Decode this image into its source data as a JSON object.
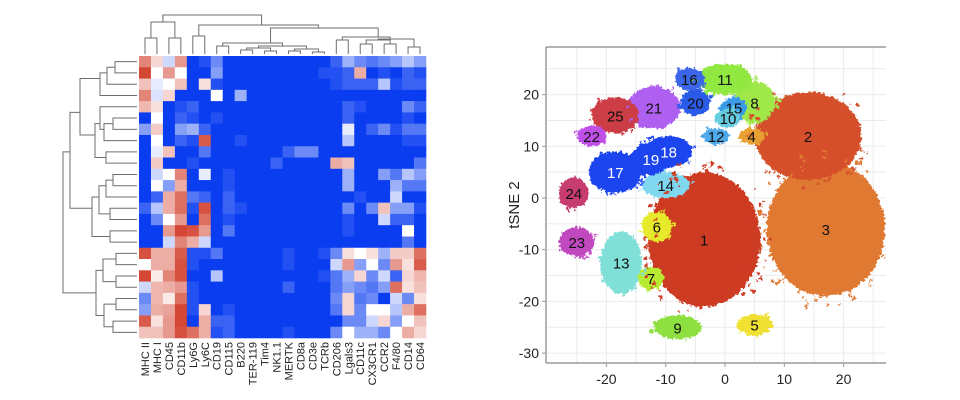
{
  "chart_data": [
    {
      "type": "heatmap",
      "title": "",
      "columns": [
        "MHC II",
        "MHC I",
        "CD45",
        "CD11b",
        "Ly6G",
        "Ly6C",
        "CD19",
        "CD115",
        "B220",
        "TER-119",
        "Tim4",
        "NK1.1",
        "MERTK",
        "CD8a",
        "CD3e",
        "TCRb",
        "CD206",
        "Lgals3",
        "CD11c",
        "CX3CR1",
        "CCR2",
        "F4/80",
        "CD14",
        "CD64"
      ],
      "row_count": 25,
      "value_range": [
        -1,
        1
      ],
      "colors": {
        "low": "#0a3cf0",
        "mid": "#ffffff",
        "high": "#d0321e"
      },
      "dendrogram_rows": true,
      "dendrogram_columns": true,
      "values": [
        [
          0.6,
          0.2,
          -0.2,
          0.5,
          -1,
          -0.9,
          -0.6,
          -1,
          -1,
          -1,
          -1,
          -1,
          -1,
          -1,
          -1,
          -1,
          -0.8,
          -0.4,
          -0.6,
          -0.7,
          -0.6,
          -0.5,
          -0.3,
          -0.5
        ],
        [
          0.9,
          0,
          0.5,
          0,
          -1,
          -1,
          -0.5,
          -1,
          -1,
          -1,
          -1,
          -1,
          -1,
          -1,
          -1,
          -0.9,
          -0.9,
          -0.8,
          0.4,
          -1,
          -0.9,
          -1,
          -0.8,
          -0.9
        ],
        [
          0.3,
          -0.1,
          0,
          0.3,
          -1,
          0.15,
          -0.9,
          -1,
          -1,
          -1,
          -1,
          -1,
          -1,
          -1,
          -1,
          -1,
          -0.9,
          -0.8,
          -0.8,
          -0.8,
          -0.3,
          -0.9,
          -0.8,
          -0.8
        ],
        [
          0.6,
          -0.15,
          0.2,
          -1,
          -1,
          -1,
          0,
          -1,
          -0.4,
          -1,
          -1,
          -1,
          -1,
          -1,
          -1,
          -1,
          -1,
          -1,
          -1,
          -1,
          -1,
          -1,
          -1,
          -1
        ],
        [
          0.35,
          0.15,
          -1,
          -0.9,
          -0.8,
          -1,
          -1,
          -1,
          -1,
          -1,
          -1,
          -1,
          -1,
          -1,
          -1,
          -1,
          -1,
          -0.8,
          -0.9,
          -1,
          -1,
          -1,
          -0.6,
          -0.8
        ],
        [
          -1,
          0,
          -1,
          -0.8,
          -0.9,
          -1,
          -0.9,
          -1,
          -1,
          -1,
          -1,
          -1,
          -1,
          -1,
          -1,
          -1,
          -1,
          -0.8,
          -1,
          -1,
          -1,
          -1,
          -0.9,
          -1
        ],
        [
          -0.5,
          0.25,
          -1,
          -0.5,
          -0.4,
          -0.8,
          -1,
          -1,
          -1,
          -1,
          -1,
          -1,
          -1,
          -1,
          -1,
          -1,
          -1,
          -0.1,
          -1,
          -0.8,
          -0.6,
          -0.9,
          -0.7,
          -0.7
        ],
        [
          -1,
          0,
          -1,
          -0.8,
          -0.9,
          0.8,
          -1,
          -1,
          -0.9,
          -1,
          -1,
          -1,
          -1,
          -1,
          -1,
          -1,
          -1,
          -0.3,
          -1,
          -1,
          -1,
          -1,
          -0.9,
          -0.9
        ],
        [
          -1,
          -0.1,
          0.3,
          -1,
          -1,
          -0.7,
          -1,
          -1,
          -1,
          -1,
          -1,
          -1,
          -0.8,
          -0.6,
          -0.6,
          -1,
          -1,
          -1,
          -1,
          -1,
          -1,
          -1,
          -1,
          -1
        ],
        [
          -1,
          0.25,
          -1,
          -1,
          -0.9,
          -1,
          -1,
          -1,
          -1,
          -1,
          -1,
          -0.8,
          -1,
          -1,
          -1,
          -1,
          0.4,
          0.3,
          -1,
          -1,
          -1,
          -1,
          -1,
          -0.7
        ],
        [
          -1,
          -0.2,
          0,
          0.6,
          -1,
          -0.1,
          -1,
          -0.9,
          -1,
          -1,
          -1,
          -1,
          -1,
          -1,
          -1,
          -1,
          -1,
          -0.4,
          -1,
          -1,
          -0.5,
          -0.7,
          -0.3,
          -0.5
        ],
        [
          -1,
          0,
          -0.5,
          0.4,
          -1,
          -1,
          -1,
          -0.9,
          -1,
          -1,
          -1,
          -1,
          -1,
          -1,
          -1,
          -1,
          -1,
          -0.4,
          -1,
          -1,
          -1,
          -0.4,
          -0.7,
          -0.7
        ],
        [
          -1,
          -0.8,
          0.4,
          0.7,
          -0.7,
          -0.8,
          -1,
          -0.8,
          -1,
          -1,
          -1,
          -1,
          -1,
          -1,
          -1,
          -1,
          -1,
          -1,
          -0.9,
          -1,
          -1,
          -0.2,
          -1,
          -1
        ],
        [
          -0.8,
          -0.3,
          0.4,
          0.7,
          -0.9,
          0.85,
          -1,
          -0.8,
          -0.9,
          -1,
          -1,
          -1,
          -1,
          -1,
          -1,
          -1,
          -1,
          -0.6,
          -1,
          -0.6,
          0.3,
          -0.5,
          -0.5,
          -0.9
        ],
        [
          -1,
          -0.6,
          0,
          0.5,
          -1,
          0.7,
          -1,
          -0.9,
          -1,
          -1,
          -1,
          -1,
          -1,
          -1,
          -1,
          -1,
          -1,
          -0.9,
          -1,
          -1,
          -0.2,
          -0.8,
          -0.8,
          -1
        ],
        [
          -1,
          -1,
          0.5,
          0.9,
          0.85,
          0.5,
          -1,
          -0.7,
          -1,
          -1,
          -1,
          -1,
          -1,
          -1,
          -1,
          -1,
          -1,
          -0.9,
          -1,
          -1,
          -1,
          -1,
          0,
          -1
        ],
        [
          -1,
          -1,
          -0.2,
          0.6,
          0.4,
          -0.2,
          -1,
          -1,
          -1,
          -1,
          -1,
          -1,
          -1,
          -1,
          -1,
          -1,
          -1,
          -1,
          -1,
          -1,
          -1,
          -1,
          -0.7,
          -1
        ],
        [
          0.85,
          0.4,
          0.4,
          0.8,
          -0.9,
          -0.9,
          -0.7,
          -1,
          -1,
          -1,
          -1,
          -1,
          -0.9,
          -1,
          -1,
          -0.9,
          -0.6,
          0.15,
          0,
          0.15,
          -0.4,
          0.25,
          0.25,
          0.7
        ],
        [
          0,
          0.4,
          0.4,
          0.85,
          -0.9,
          -1,
          -1,
          -1,
          -1,
          -1,
          -1,
          -1,
          -0.9,
          -1,
          -1,
          -1,
          -0.2,
          0.5,
          -0.5,
          0,
          -0.6,
          0.5,
          0.15,
          0.8
        ],
        [
          0.9,
          0.1,
          0.6,
          0.85,
          -1,
          -1,
          -0.3,
          -1,
          -1,
          -1,
          -1,
          -1,
          -1,
          -1,
          -1,
          -0.9,
          -0.7,
          -0.4,
          0.2,
          -0.6,
          -0.2,
          -0.8,
          0.2,
          0.35
        ],
        [
          -0.2,
          0.35,
          0.4,
          0.5,
          -0.9,
          -1,
          -1,
          -1,
          -1,
          -1,
          -1,
          -1,
          -0.8,
          -1,
          -1,
          -1,
          -0.7,
          -0.5,
          -0.6,
          -0.7,
          -0.5,
          0.7,
          0.15,
          0.3
        ],
        [
          -0.6,
          0.35,
          0.1,
          0.7,
          -0.9,
          -1,
          -1,
          -1,
          -1,
          -1,
          -1,
          -1,
          -1,
          -1,
          -1,
          -1,
          -0.6,
          0.2,
          -0.7,
          -0.6,
          -1,
          -0.2,
          -0.6,
          0.15
        ],
        [
          -0.5,
          0.4,
          0.45,
          0.9,
          -0.9,
          0.2,
          -1,
          -0.9,
          -1,
          -1,
          -1,
          -1,
          -1,
          -1,
          -1,
          -1,
          -0.7,
          0.2,
          -0.6,
          0,
          0,
          -0.3,
          0.4,
          0.7
        ],
        [
          0.8,
          0.15,
          0.5,
          0.9,
          -1,
          0.4,
          -0.8,
          -0.8,
          -1,
          -1,
          -1,
          -1,
          -1,
          -1,
          -1,
          -1,
          -1,
          -0.6,
          -0.6,
          -0.2,
          0.2,
          -0.5,
          0,
          0.3
        ],
        [
          0.3,
          0.3,
          0.5,
          0.85,
          0.7,
          0.4,
          -0.9,
          -0.8,
          -1,
          -1,
          -1,
          -1,
          -0.9,
          -1,
          -1,
          -1,
          -0.6,
          0,
          -0.4,
          -0.4,
          -0.6,
          0,
          0.4,
          0.2
        ]
      ]
    },
    {
      "type": "scatter",
      "title": "",
      "xlabel": "",
      "ylabel": "tSNE 2",
      "xlim": [
        -30,
        27
      ],
      "ylim": [
        -32,
        29
      ],
      "xticks": [
        "-20",
        "-10",
        "0",
        "10",
        "20"
      ],
      "xtick_values": [
        -20,
        -10,
        0,
        10,
        20
      ],
      "yticks": [
        "20",
        "10",
        "0",
        "-10",
        "-20",
        "-30"
      ],
      "ytick_values": [
        20,
        10,
        0,
        -10,
        -20,
        -30
      ],
      "grid": true,
      "clusters": [
        {
          "label": "1",
          "color": "#cc3a24",
          "cx": -3.5,
          "cy": -8,
          "rx": 9.5,
          "ry": 13
        },
        {
          "label": "2",
          "color": "#d4502a",
          "cx": 14,
          "cy": 12,
          "rx": 9,
          "ry": 8.5
        },
        {
          "label": "3",
          "color": "#e07a30",
          "cx": 17,
          "cy": -6,
          "rx": 10,
          "ry": 13
        },
        {
          "label": "4",
          "color": "#e8a030",
          "cx": 4.5,
          "cy": 12,
          "rx": 2.2,
          "ry": 1.5
        },
        {
          "label": "5",
          "color": "#f0e030",
          "cx": 5,
          "cy": -24.5,
          "rx": 3,
          "ry": 2
        },
        {
          "label": "6",
          "color": "#e6ea2a",
          "cx": -11.5,
          "cy": -5.5,
          "rx": 2.5,
          "ry": 3
        },
        {
          "label": "7",
          "color": "#b8ea30",
          "cx": -12.5,
          "cy": -15.5,
          "rx": 2.2,
          "ry": 2.2
        },
        {
          "label": "8",
          "color": "#a0e848",
          "cx": 5,
          "cy": 18.5,
          "rx": 3.5,
          "ry": 4
        },
        {
          "label": "9",
          "color": "#8ee040",
          "cx": -8,
          "cy": -25,
          "rx": 4,
          "ry": 2.3
        },
        {
          "label": "10",
          "color": "#66cce0",
          "cx": 0.5,
          "cy": 15.5,
          "rx": 2.2,
          "ry": 1.8
        },
        {
          "label": "11",
          "color": "#90e840",
          "cx": 0,
          "cy": 23,
          "rx": 4.5,
          "ry": 3
        },
        {
          "label": "12",
          "color": "#50a8e8",
          "cx": -1.5,
          "cy": 12,
          "rx": 2.2,
          "ry": 1.5
        },
        {
          "label": "13",
          "color": "#80e0d8",
          "cx": -17.5,
          "cy": -12.5,
          "rx": 3.5,
          "ry": 6
        },
        {
          "label": "14",
          "color": "#80d8f0",
          "cx": -10,
          "cy": 2.5,
          "rx": 4,
          "ry": 2.5
        },
        {
          "label": "15",
          "color": "#3a9ae8",
          "cx": 1.5,
          "cy": 17.5,
          "rx": 2.2,
          "ry": 2
        },
        {
          "label": "16",
          "color": "#3a66e8",
          "cx": -6,
          "cy": 23,
          "rx": 2.5,
          "ry": 2.2
        },
        {
          "label": "17",
          "color": "#1a44f0",
          "cx": -18.5,
          "cy": 5,
          "rx": 4.5,
          "ry": 4
        },
        {
          "label": "18",
          "color": "#1a44f0",
          "cx": -9.5,
          "cy": 9,
          "rx": 4,
          "ry": 3
        },
        {
          "label": "19",
          "color": "#1a44f0",
          "cx": -12.5,
          "cy": 7.5,
          "rx": 3.5,
          "ry": 3
        },
        {
          "label": "20",
          "color": "#2a5ae8",
          "cx": -5,
          "cy": 18.5,
          "rx": 2.5,
          "ry": 2.5
        },
        {
          "label": "21",
          "color": "#b060f0",
          "cx": -12,
          "cy": 17.5,
          "rx": 4.5,
          "ry": 4
        },
        {
          "label": "22",
          "color": "#c050e8",
          "cx": -22.5,
          "cy": 12,
          "rx": 2.5,
          "ry": 2
        },
        {
          "label": "23",
          "color": "#c048c0",
          "cx": -25,
          "cy": -8.5,
          "rx": 3,
          "ry": 2.8
        },
        {
          "label": "24",
          "color": "#c83c70",
          "cx": -25.5,
          "cy": 1,
          "rx": 2.5,
          "ry": 3
        },
        {
          "label": "25",
          "color": "#cc3c44",
          "cx": -18.5,
          "cy": 16,
          "rx": 4,
          "ry": 3.5
        }
      ]
    }
  ]
}
